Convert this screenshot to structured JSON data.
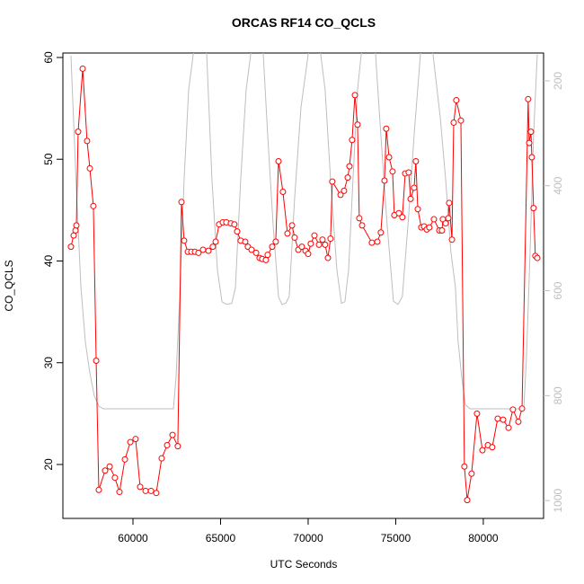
{
  "chart_data": {
    "type": "line",
    "title": "ORCAS RF14 CO_QCLS",
    "x_label": "UTC Seconds",
    "y_label": "CO_QCLS",
    "xlim": [
      56000,
      83440
    ],
    "ylim": [
      14.7,
      60.44
    ],
    "y2lim": [
      1034,
      147
    ],
    "xticks": [
      60000,
      65000,
      70000,
      75000,
      80000
    ],
    "yticks": [
      20,
      30,
      40,
      50,
      60
    ],
    "y2ticks": [
      200,
      400,
      600,
      800,
      1000
    ],
    "series": [
      {
        "color": "#ff0000",
        "markers": true,
        "x": [
          56460,
          56615,
          56720,
          56770,
          56870,
          57130,
          57380,
          57540,
          57740,
          57900,
          58050,
          58410,
          58670,
          58970,
          59230,
          59540,
          59850,
          60150,
          60410,
          60720,
          61030,
          61330,
          61640,
          61950,
          62260,
          62560,
          62770,
          62920,
          63130,
          63330,
          63540,
          63740,
          64000,
          64310,
          64560,
          64720,
          64920,
          65130,
          65330,
          65590,
          65790,
          65950,
          66150,
          66410,
          66560,
          66770,
          67030,
          67230,
          67380,
          67590,
          67690,
          67950,
          68150,
          68310,
          68560,
          68820,
          69080,
          69230,
          69440,
          69640,
          69850,
          70000,
          70150,
          70360,
          70620,
          70820,
          70970,
          71130,
          71280,
          71380,
          71850,
          72050,
          72260,
          72360,
          72510,
          72670,
          72820,
          72920,
          73080,
          73640,
          73950,
          74150,
          74360,
          74460,
          74620,
          74820,
          74920,
          75180,
          75380,
          75540,
          75740,
          75850,
          76050,
          76150,
          76260,
          76460,
          76620,
          76770,
          76920,
          77180,
          77490,
          77640,
          77690,
          77850,
          78000,
          78050,
          78210,
          78310,
          78460,
          78720,
          78920,
          79080,
          79330,
          79640,
          79950,
          80260,
          80510,
          80820,
          81130,
          81440,
          81690,
          82000,
          82210,
          82560,
          82620,
          82720,
          82770,
          82870,
          82970,
          83080
        ],
        "values": [
          41.4,
          42.5,
          43.0,
          43.5,
          52.7,
          58.9,
          51.8,
          49.1,
          45.4,
          30.2,
          17.5,
          19.4,
          19.8,
          18.7,
          17.3,
          20.5,
          22.2,
          22.5,
          17.8,
          17.4,
          17.4,
          17.2,
          20.6,
          21.9,
          22.9,
          21.8,
          45.8,
          42.0,
          40.9,
          40.9,
          40.9,
          40.8,
          41.1,
          41.0,
          41.4,
          41.9,
          43.6,
          43.8,
          43.8,
          43.7,
          43.6,
          42.9,
          42.0,
          41.9,
          41.4,
          41.1,
          40.8,
          40.3,
          40.2,
          40.1,
          40.6,
          41.4,
          41.9,
          49.8,
          46.8,
          42.7,
          43.5,
          42.3,
          41.1,
          41.4,
          41.0,
          40.7,
          41.7,
          42.5,
          41.6,
          42.1,
          41.6,
          40.3,
          42.2,
          47.8,
          46.5,
          46.9,
          48.2,
          49.3,
          51.9,
          56.3,
          53.4,
          44.2,
          43.5,
          41.8,
          41.9,
          42.8,
          47.9,
          53.0,
          50.2,
          48.8,
          44.5,
          44.7,
          44.3,
          48.6,
          48.7,
          46.1,
          47.2,
          49.8,
          45.1,
          43.3,
          43.4,
          43.1,
          43.3,
          44.1,
          43.0,
          43.0,
          44.1,
          43.7,
          44.2,
          45.7,
          42.1,
          53.6,
          55.8,
          53.8,
          19.8,
          16.5,
          19.1,
          25.0,
          21.4,
          21.9,
          21.7,
          24.5,
          24.4,
          23.6,
          25.4,
          24.2,
          25.5,
          55.9,
          51.6,
          52.7,
          50.2,
          45.2,
          40.5,
          40.3
        ]
      },
      {
        "color": "#bebebe",
        "axis": "y2",
        "markers": false,
        "x": [
          56460,
          56770,
          57030,
          57280,
          57540,
          57790,
          58050,
          58310,
          62310,
          62460,
          62670,
          62920,
          63180,
          63440,
          63790,
          64210,
          64510,
          64820,
          65080,
          65330,
          65640,
          65850,
          66150,
          66460,
          66720,
          67080,
          67440,
          67690,
          68000,
          68310,
          68510,
          68720,
          68920,
          69230,
          69590,
          70000,
          70360,
          70720,
          70970,
          71280,
          71640,
          71900,
          72100,
          72310,
          72560,
          72820,
          73030,
          73440,
          73850,
          74150,
          74510,
          74870,
          75130,
          75380,
          75740,
          76050,
          76410,
          76770,
          77130,
          77540,
          77850,
          78150,
          78410,
          78560,
          78770,
          78970,
          79230,
          82310,
          82460,
          82670,
          82870,
          83080
        ],
        "values": [
          152,
          406,
          594,
          697,
          757,
          800,
          820,
          825,
          825,
          765,
          611,
          388,
          217,
          150,
          100,
          150,
          388,
          560,
          621,
          626,
          624,
          594,
          388,
          217,
          150,
          100,
          150,
          303,
          474,
          612,
          626,
          624,
          611,
          423,
          251,
          150,
          100,
          150,
          217,
          388,
          560,
          624,
          621,
          560,
          388,
          217,
          150,
          100,
          150,
          303,
          474,
          620,
          626,
          611,
          457,
          303,
          150,
          100,
          150,
          269,
          388,
          526,
          594,
          697,
          765,
          817,
          825,
          825,
          731,
          526,
          303,
          150
        ]
      }
    ]
  }
}
